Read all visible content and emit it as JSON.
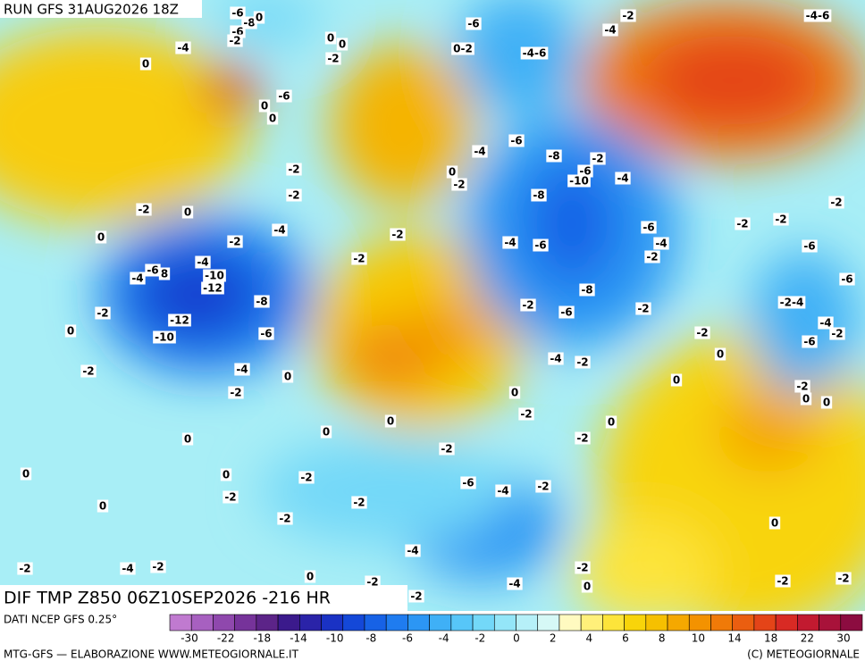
{
  "header": {
    "run": "RUN GFS 31AUG2026 18Z"
  },
  "map_title": "DIF TMP Z850 06Z10SEP2026 -216 HR",
  "map_labels": [
    "-6",
    "-8",
    "0",
    "-6",
    "-2",
    "-4",
    "0",
    "0",
    "-2",
    "0",
    "0-2",
    "-6",
    "-4-6",
    "-2",
    "-4",
    "-4-6",
    "-6",
    "0",
    "0",
    "-2",
    "-2",
    "-4",
    "-6",
    "-8",
    "-6",
    "-10",
    "-2",
    "-4",
    "0",
    "-2",
    "-8",
    "-2",
    "0",
    "0",
    "-2",
    "-4",
    "-2",
    "-4",
    "-6",
    "-6",
    "-4",
    "-2",
    "-2",
    "-2",
    "-6",
    "-2",
    "-2",
    "-4",
    "-6",
    "-4",
    "8",
    "-10",
    "-12",
    "-8",
    "-8",
    "-2",
    "-6",
    "-2",
    "-2",
    "-12",
    "-10",
    "-6",
    "0",
    "-2-4",
    "-4",
    "-2",
    "-6",
    "-6",
    "-2",
    "0",
    "-4",
    "-2",
    "-4",
    "-2",
    "0",
    "-2",
    "0",
    "-2",
    "0",
    "0",
    "0",
    "-2",
    "0",
    "0",
    "0",
    "0",
    "-2",
    "-2",
    "0",
    "0",
    "-2",
    "-6",
    "-4",
    "-2",
    "-2",
    "-2",
    "0",
    "-2",
    "0",
    "-4",
    "-2",
    "-4",
    "-2",
    "-2",
    "0",
    "-2",
    "-4",
    "0",
    "-2",
    "-2",
    "-2"
  ],
  "colorbar": {
    "colors": [
      "#c07ad0",
      "#a760c0",
      "#8f48ad",
      "#76339a",
      "#5c2488",
      "#3b1a8c",
      "#2a23a8",
      "#1a32c4",
      "#1448d8",
      "#1762e6",
      "#1f7cf0",
      "#2c96f4",
      "#3fb0f6",
      "#57c6f8",
      "#73d8f8",
      "#94e6f8",
      "#b6f0f8",
      "#d6f8f6",
      "#fffac0",
      "#fff07a",
      "#fde43a",
      "#f8d40a",
      "#f6c000",
      "#f5a800",
      "#f39200",
      "#f07a08",
      "#ea5e10",
      "#e44418",
      "#d82a24",
      "#c21a30",
      "#a8123a",
      "#8c0c40"
    ],
    "labels": [
      "-30",
      "-22",
      "-18",
      "-14",
      "-10",
      "-8",
      "-6",
      "-4",
      "-2",
      "0",
      "2",
      "4",
      "6",
      "8",
      "10",
      "14",
      "18",
      "22",
      "30"
    ]
  },
  "footer": {
    "source": "DATI NCEP GFS 0.25°",
    "credit": "MTG-GFS — ELABORAZIONE WWW.METEOGIORNALE.IT",
    "copyright": "(C) METEOGIORNALE"
  }
}
